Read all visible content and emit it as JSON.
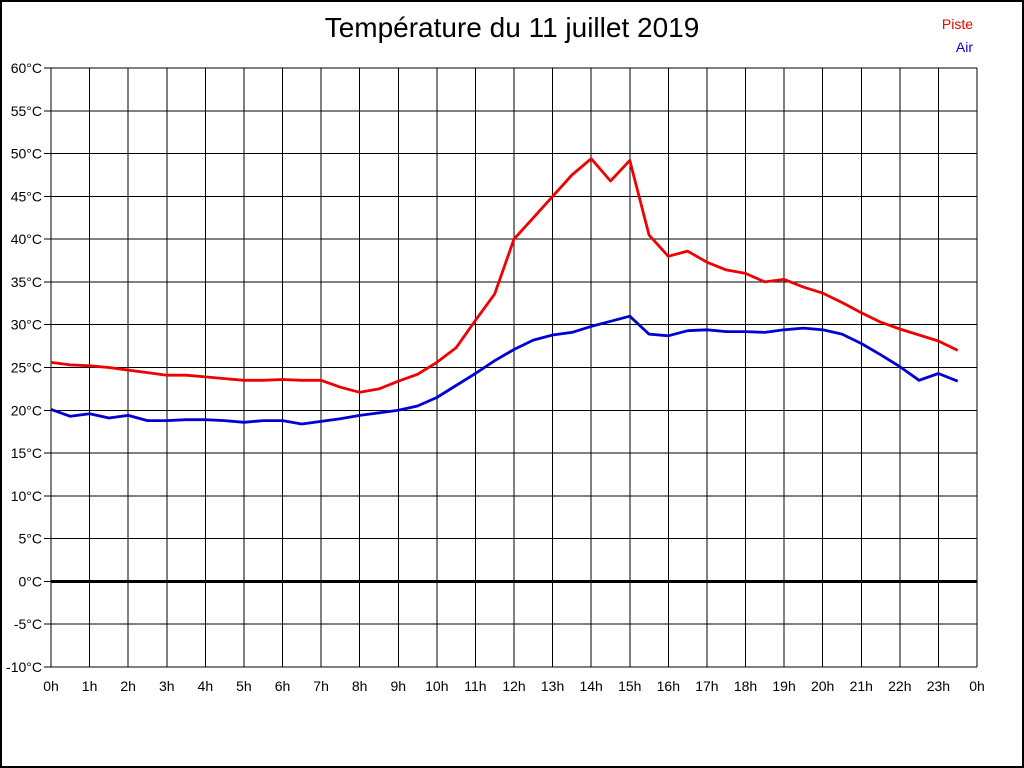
{
  "title": "Température du 11 juillet 2019",
  "legend_position": "top-right",
  "colors": {
    "piste": "#ee0000",
    "air": "#0000d2",
    "grid": "#000000",
    "background": "#ffffff",
    "frame": "#000000"
  },
  "chart_data": {
    "type": "line",
    "title": "Température du 11 juillet 2019",
    "xlabel": "",
    "ylabel": "",
    "xlim": [
      0,
      24
    ],
    "ylim": [
      -10,
      60
    ],
    "grid": true,
    "zero_line": true,
    "x_step_hours": 0.5,
    "x_tick_labels": [
      "0h",
      "1h",
      "2h",
      "3h",
      "4h",
      "5h",
      "6h",
      "7h",
      "8h",
      "9h",
      "10h",
      "11h",
      "12h",
      "13h",
      "14h",
      "15h",
      "16h",
      "17h",
      "18h",
      "19h",
      "20h",
      "21h",
      "22h",
      "23h",
      "0h"
    ],
    "y_tick_labels": [
      "60°C",
      "55°C",
      "50°C",
      "45°C",
      "40°C",
      "35°C",
      "30°C",
      "25°C",
      "20°C",
      "15°C",
      "10°C",
      "5°C",
      "0°C",
      "-5°C",
      "-10°C"
    ],
    "y_tick_values": [
      60,
      55,
      50,
      45,
      40,
      35,
      30,
      25,
      20,
      15,
      10,
      5,
      0,
      -5,
      -10
    ],
    "series": [
      {
        "name": "Piste",
        "color": "#ee0000",
        "values": [
          25.6,
          25.3,
          25.2,
          25.0,
          24.7,
          24.4,
          24.1,
          24.1,
          23.9,
          23.7,
          23.5,
          23.5,
          23.6,
          23.5,
          23.5,
          22.7,
          22.1,
          22.5,
          23.4,
          24.2,
          25.6,
          27.3,
          30.5,
          33.6,
          40.0,
          42.5,
          45.0,
          47.5,
          49.4,
          46.8,
          49.2,
          40.5,
          38.0,
          38.6,
          37.3,
          36.4,
          36.0,
          35.0,
          35.3,
          34.4,
          33.7,
          32.6,
          31.4,
          30.3,
          29.5,
          28.8,
          28.1,
          27.0
        ]
      },
      {
        "name": "Air",
        "color": "#0000d2",
        "values": [
          20.1,
          19.3,
          19.6,
          19.1,
          19.4,
          18.8,
          18.8,
          18.9,
          18.9,
          18.8,
          18.6,
          18.8,
          18.8,
          18.4,
          18.7,
          19.0,
          19.4,
          19.7,
          20.0,
          20.5,
          21.5,
          22.9,
          24.3,
          25.8,
          27.1,
          28.2,
          28.8,
          29.1,
          29.8,
          30.4,
          31.0,
          28.9,
          28.7,
          29.3,
          29.4,
          29.2,
          29.2,
          29.1,
          29.4,
          29.6,
          29.4,
          28.9,
          27.8,
          26.5,
          25.1,
          23.5,
          24.3,
          23.4
        ]
      }
    ]
  }
}
